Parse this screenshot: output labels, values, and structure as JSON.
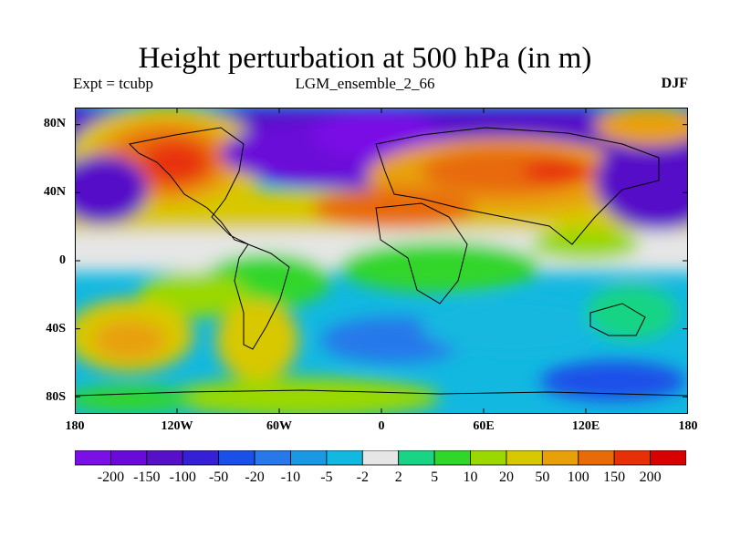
{
  "title": "Height perturbation at 500 hPa (in m)",
  "left_subtitle": "Expt = tcubp",
  "center_subtitle": "LGM_ensemble_2_66",
  "right_subtitle": "DJF",
  "map": {
    "projection": "cylindrical equidistant",
    "lon_range": [
      -180,
      180
    ],
    "lat_range": [
      -90,
      90
    ],
    "field": "500 hPa height perturbation",
    "units": "m",
    "y_ticks": [
      {
        "value": 80,
        "label": "80N"
      },
      {
        "value": 40,
        "label": "40N"
      },
      {
        "value": 0,
        "label": "0"
      },
      {
        "value": -40,
        "label": "40S"
      },
      {
        "value": -80,
        "label": "80S"
      }
    ],
    "x_ticks": [
      {
        "value": -180,
        "label": "180"
      },
      {
        "value": -120,
        "label": "120W"
      },
      {
        "value": -60,
        "label": "60W"
      },
      {
        "value": 0,
        "label": "0"
      },
      {
        "value": 60,
        "label": "60E"
      },
      {
        "value": 120,
        "label": "120E"
      },
      {
        "value": 180,
        "label": "180"
      }
    ],
    "features": [
      {
        "lon": -130,
        "lat": 58,
        "level": 15,
        "desc": "strong positive height anomaly over western North America"
      },
      {
        "lon": 80,
        "lat": 52,
        "level": 14,
        "desc": "positive anomaly over central Asia"
      },
      {
        "lon": 30,
        "lat": 74,
        "level": 0,
        "desc": "deep negative anomaly over Arctic / northern Europe"
      },
      {
        "lon": -50,
        "lat": 46,
        "level": 1,
        "desc": "negative anomaly over North Atlantic"
      },
      {
        "lon": 150,
        "lat": 50,
        "level": 1,
        "desc": "negative anomaly over North Pacific"
      }
    ]
  },
  "colorbar": {
    "colors": [
      "#7a10e6",
      "#6a0ad8",
      "#5710c8",
      "#3520d8",
      "#1a50e8",
      "#2878ea",
      "#1a98e4",
      "#12b8e0",
      "#e6e6e6",
      "#18d484",
      "#30d62a",
      "#9ad800",
      "#d8c800",
      "#e8a008",
      "#e86a08",
      "#e83008",
      "#d80000"
    ],
    "labels": [
      "-200",
      "-150",
      "-100",
      "-50",
      "-20",
      "-10",
      "-5",
      "-2",
      "2",
      "5",
      "10",
      "20",
      "50",
      "100",
      "150",
      "200"
    ]
  }
}
